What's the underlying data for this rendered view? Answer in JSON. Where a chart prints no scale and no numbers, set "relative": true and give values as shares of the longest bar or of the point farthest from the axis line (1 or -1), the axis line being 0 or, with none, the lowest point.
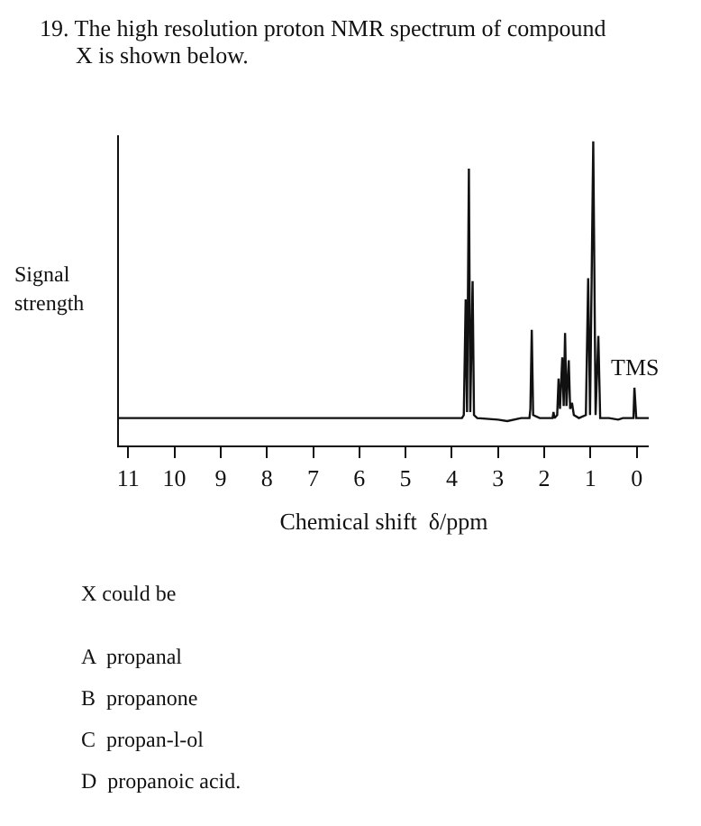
{
  "chart_data": {
    "type": "line",
    "title": "19. The high resolution proton NMR spectrum of compound X is shown below.",
    "xlabel": "Chemical shift  δ/ppm",
    "ylabel": "Signal strength",
    "relative": true,
    "color": "#111111",
    "marker": "none",
    "grid": false,
    "x": [
      11.2,
      3.78,
      3.74,
      3.7,
      3.67,
      3.63,
      3.6,
      3.55,
      3.52,
      3.45,
      3.0,
      2.8,
      2.5,
      2.32,
      2.3,
      2.27,
      2.24,
      2.1,
      1.82,
      1.8,
      1.78,
      1.72,
      1.69,
      1.66,
      1.61,
      1.58,
      1.55,
      1.52,
      1.47,
      1.44,
      1.4,
      1.36,
      1.25,
      1.1,
      1.05,
      1.01,
      0.94,
      0.89,
      0.83,
      0.79,
      0.6,
      0.4,
      0.3,
      0.07,
      0.05,
      0.01,
      -0.26
    ],
    "values": [
      0.09,
      0.09,
      0.1,
      0.48,
      0.11,
      0.91,
      0.11,
      0.54,
      0.1,
      0.09,
      0.085,
      0.08,
      0.09,
      0.09,
      0.12,
      0.38,
      0.1,
      0.09,
      0.09,
      0.11,
      0.09,
      0.1,
      0.22,
      0.12,
      0.29,
      0.13,
      0.37,
      0.13,
      0.28,
      0.12,
      0.14,
      0.1,
      0.09,
      0.1,
      0.55,
      0.1,
      1.0,
      0.1,
      0.36,
      0.09,
      0.09,
      0.085,
      0.09,
      0.09,
      0.19,
      0.09,
      0.09
    ],
    "xlim": [
      11.2,
      -0.26
    ],
    "xticks": [
      11,
      10,
      9,
      8,
      7,
      6,
      5,
      4,
      3,
      2,
      1,
      0
    ],
    "annotations": [
      {
        "text": "TMS",
        "x": 0.03,
        "y": 0.19
      },
      "X could be",
      "A  propanal",
      "B  propanone",
      "C  propan-l-ol",
      "D  propanoic acid."
    ]
  }
}
